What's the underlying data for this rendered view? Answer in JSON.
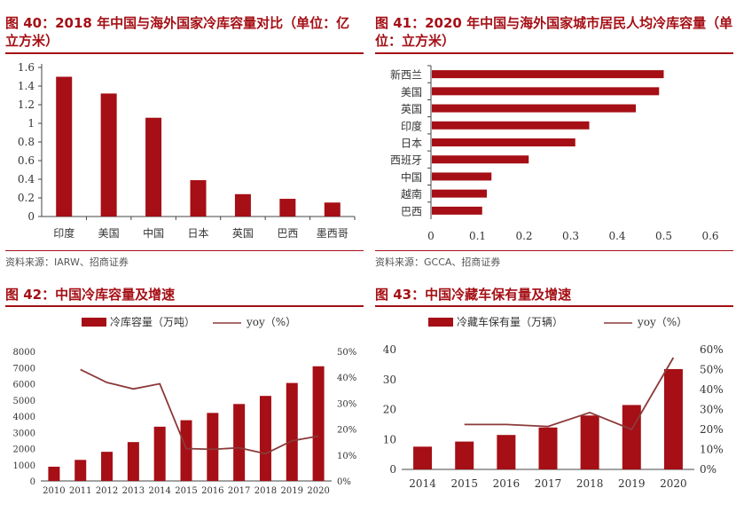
{
  "colors": {
    "accent": "#a50f15",
    "bar": "#a50f15",
    "line": "#8b3a3a"
  },
  "charts": [
    {
      "title": "图 40：2018 年中国与海外国家冷库容量对比（单位：亿立方米）",
      "source": "资料来源：IARW、招商证券"
    },
    {
      "title": "图 41：2020 年中国与海外国家城市居民人均冷库容量（单位：立方米）",
      "source": "资料来源：GCCA、招商证券"
    },
    {
      "title": "图 42：中国冷库容量及增速"
    },
    {
      "title": "图 43：中国冷藏车保有量及增速"
    }
  ],
  "chart_data": [
    {
      "type": "bar",
      "title": "2018年中国与海外国家冷库容量对比（单位：亿立方米）",
      "categories": [
        "印度",
        "美国",
        "中国",
        "日本",
        "英国",
        "巴西",
        "墨西哥"
      ],
      "values": [
        1.5,
        1.32,
        1.06,
        0.39,
        0.24,
        0.19,
        0.15
      ],
      "ylim": [
        0,
        1.6
      ],
      "yticks": [
        "0",
        "0.2",
        "0.4",
        "0.6",
        "0.8",
        "1",
        "1.2",
        "1.4",
        "1.6"
      ]
    },
    {
      "type": "bar",
      "orientation": "horizontal",
      "title": "2020年中国与海外国家城市居民人均冷库容量（单位：立方米）",
      "categories": [
        "新西兰",
        "美国",
        "英国",
        "印度",
        "日本",
        "西班牙",
        "中国",
        "越南",
        "巴西"
      ],
      "values": [
        0.5,
        0.49,
        0.44,
        0.34,
        0.31,
        0.21,
        0.13,
        0.12,
        0.11
      ],
      "xlim": [
        0,
        0.6
      ],
      "xticks": [
        "0",
        "0.1",
        "0.2",
        "0.3",
        "0.4",
        "0.5",
        "0.6"
      ]
    },
    {
      "type": "bar+line",
      "title": "中国冷库容量及增速",
      "legend": [
        "冷库容量（万吨）",
        "yoy（%）"
      ],
      "categories": [
        "2010",
        "2011",
        "2012",
        "2013",
        "2014",
        "2015",
        "2016",
        "2017",
        "2018",
        "2019",
        "2020"
      ],
      "series": [
        {
          "name": "冷库容量（万吨）",
          "axis": "left",
          "values": [
            880,
            1300,
            1800,
            2400,
            3350,
            3750,
            4200,
            4750,
            5250,
            6050,
            7080
          ]
        },
        {
          "name": "yoy（%）",
          "axis": "right",
          "values": [
            null,
            43,
            38,
            35.5,
            37.5,
            12.5,
            12.2,
            12.8,
            10.5,
            15.5,
            17.3
          ]
        }
      ],
      "ylim_left": [
        0,
        8000
      ],
      "yticks_left": [
        "0",
        "1000",
        "2000",
        "3000",
        "4000",
        "5000",
        "6000",
        "7000",
        "8000"
      ],
      "ylim_right": [
        0,
        50
      ],
      "yticks_right": [
        "0%",
        "10%",
        "20%",
        "30%",
        "40%",
        "50%"
      ]
    },
    {
      "type": "bar+line",
      "title": "中国冷藏车保有量及增速",
      "legend": [
        "冷藏车保有量（万辆）",
        "yoy（%）"
      ],
      "categories": [
        "2014",
        "2015",
        "2016",
        "2017",
        "2018",
        "2019",
        "2020"
      ],
      "series": [
        {
          "name": "冷藏车保有量（万辆）",
          "axis": "left",
          "values": [
            7.6,
            9.3,
            11.5,
            14.0,
            18.0,
            21.5,
            33.5
          ]
        },
        {
          "name": "yoy（%）",
          "axis": "right",
          "values": [
            null,
            22.5,
            22.5,
            21.5,
            28.5,
            20,
            56
          ]
        }
      ],
      "ylim_left": [
        0,
        40
      ],
      "yticks_left": [
        "0",
        "10",
        "20",
        "30",
        "40"
      ],
      "ylim_right": [
        0,
        60
      ],
      "yticks_right": [
        "0%",
        "10%",
        "20%",
        "30%",
        "40%",
        "50%",
        "60%"
      ]
    }
  ]
}
